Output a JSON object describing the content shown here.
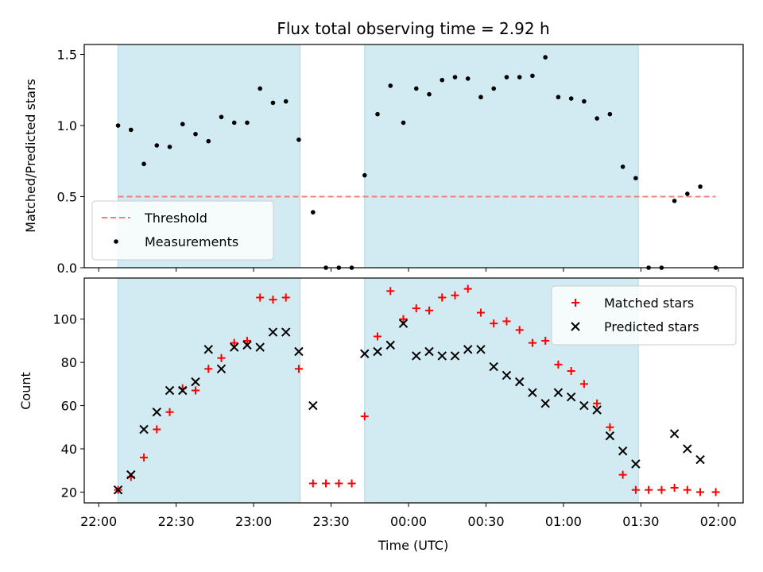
{
  "chart_data": {
    "title": "Flux total observing time = 2.92 h",
    "x_axis": {
      "label": "Time (UTC)",
      "ticks": [
        {
          "minutes": 0,
          "label": "22:00"
        },
        {
          "minutes": 30,
          "label": "22:30"
        },
        {
          "minutes": 60,
          "label": "23:00"
        },
        {
          "minutes": 90,
          "label": "23:30"
        },
        {
          "minutes": 120,
          "label": "00:00"
        },
        {
          "minutes": 150,
          "label": "00:30"
        },
        {
          "minutes": 180,
          "label": "01:00"
        },
        {
          "minutes": 210,
          "label": "01:30"
        },
        {
          "minutes": 240,
          "label": "02:00"
        }
      ],
      "xlim_minutes": [
        -5.6,
        249.6
      ]
    },
    "shaded_intervals_minutes": [
      [
        7.5,
        78
      ],
      [
        103,
        209
      ]
    ],
    "shade_color": "#add8e6",
    "panels": [
      {
        "type": "scatter",
        "ylabel": "Matched/Predicted stars",
        "ylim": [
          0,
          1.57
        ],
        "yticks": [
          {
            "value": 0.0,
            "label": "0.0"
          },
          {
            "value": 0.5,
            "label": "0.5"
          },
          {
            "value": 1.0,
            "label": "1.0"
          },
          {
            "value": 1.5,
            "label": "1.5"
          }
        ],
        "threshold": {
          "name": "Threshold",
          "value": 0.5,
          "x_range_minutes": [
            7.5,
            239
          ],
          "color": "#f08080"
        },
        "series": [
          {
            "name": "Measurements",
            "color": "#000000",
            "marker": "dot",
            "x": [
              7.5,
              12.5,
              17.5,
              22.5,
              27.5,
              32.5,
              37.5,
              42.5,
              47.5,
              52.5,
              57.5,
              62.5,
              67.5,
              72.5,
              77.5,
              83,
              88,
              93,
              98,
              103,
              108,
              113,
              118,
              123,
              128,
              133,
              138,
              143,
              148,
              153,
              158,
              163,
              168,
              173,
              178,
              183,
              188,
              193,
              198,
              203,
              208,
              213,
              218,
              223,
              228,
              233,
              239
            ],
            "y": [
              1.0,
              0.97,
              0.73,
              0.86,
              0.85,
              1.01,
              0.94,
              0.89,
              1.06,
              1.02,
              1.02,
              1.26,
              1.16,
              1.17,
              0.9,
              0.39,
              0.0,
              0.0,
              0.0,
              0.65,
              1.08,
              1.28,
              1.02,
              1.26,
              1.22,
              1.32,
              1.34,
              1.33,
              1.2,
              1.26,
              1.34,
              1.34,
              1.35,
              1.48,
              1.2,
              1.19,
              1.17,
              1.05,
              1.08,
              0.71,
              0.63,
              0.0,
              0.0,
              0.47,
              0.52,
              0.57,
              0.0
            ]
          }
        ],
        "legend": {
          "position": "lower-left",
          "entries": [
            "Threshold",
            "Measurements"
          ]
        }
      },
      {
        "type": "scatter",
        "ylabel": "Count",
        "ylim": [
          15,
          119
        ],
        "yticks": [
          {
            "value": 20,
            "label": "20"
          },
          {
            "value": 40,
            "label": "40"
          },
          {
            "value": 60,
            "label": "60"
          },
          {
            "value": 80,
            "label": "80"
          },
          {
            "value": 100,
            "label": "100"
          }
        ],
        "series": [
          {
            "name": "Matched stars",
            "color": "#ff0000",
            "marker": "plus",
            "x": [
              7.5,
              12.5,
              17.5,
              22.5,
              27.5,
              32.5,
              37.5,
              42.5,
              47.5,
              52.5,
              57.5,
              62.5,
              67.5,
              72.5,
              77.5,
              83,
              88,
              93,
              98,
              103,
              108,
              113,
              118,
              123,
              128,
              133,
              138,
              143,
              148,
              153,
              158,
              163,
              168,
              173,
              178,
              183,
              188,
              193,
              198,
              203,
              208,
              213,
              218,
              223,
              228,
              233,
              239
            ],
            "y": [
              21,
              27,
              36,
              49,
              57,
              68,
              67,
              77,
              82,
              89,
              90,
              110,
              109,
              110,
              77,
              24,
              24,
              24,
              24,
              55,
              92,
              113,
              100,
              105,
              104,
              110,
              111,
              114,
              103,
              98,
              99,
              95,
              89,
              90,
              79,
              76,
              70,
              61,
              50,
              28,
              21,
              21,
              21,
              22,
              21,
              20,
              20
            ]
          },
          {
            "name": "Predicted stars",
            "color": "#000000",
            "marker": "x",
            "x": [
              7.5,
              12.5,
              17.5,
              22.5,
              27.5,
              32.5,
              37.5,
              42.5,
              47.5,
              52.5,
              57.5,
              62.5,
              67.5,
              72.5,
              77.5,
              83,
              103,
              108,
              113,
              118,
              123,
              128,
              133,
              138,
              143,
              148,
              153,
              158,
              163,
              168,
              173,
              178,
              183,
              188,
              193,
              198,
              203,
              208,
              223,
              228,
              233
            ],
            "y": [
              21,
              28,
              49,
              57,
              67,
              67,
              71,
              86,
              77,
              87,
              88,
              87,
              94,
              94,
              85,
              60,
              84,
              85,
              88,
              98,
              83,
              85,
              83,
              83,
              86,
              86,
              78,
              74,
              71,
              66,
              61,
              66,
              64,
              60,
              58,
              46,
              39,
              33,
              47,
              40,
              35
            ]
          }
        ],
        "legend": {
          "position": "top-right",
          "entries": [
            "Matched stars",
            "Predicted stars"
          ]
        }
      }
    ]
  }
}
